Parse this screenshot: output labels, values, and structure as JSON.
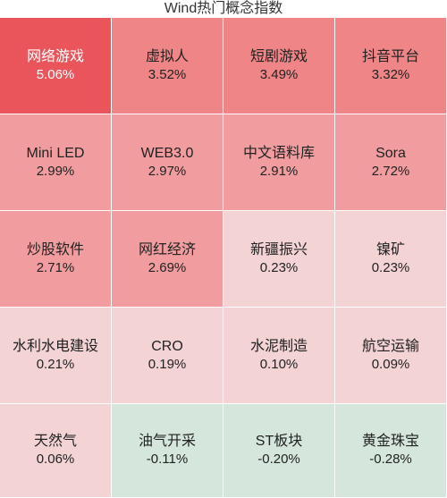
{
  "header": {
    "title": "Wind热门概念指数"
  },
  "tiles": [
    {
      "name": "网络游戏",
      "change": "5.06%",
      "color": "#e9555a",
      "text": "#ffffff"
    },
    {
      "name": "虚拟人",
      "change": "3.52%",
      "color": "#ef8587",
      "text": "#222222"
    },
    {
      "name": "短剧游戏",
      "change": "3.49%",
      "color": "#ef8587",
      "text": "#222222"
    },
    {
      "name": "抖音平台",
      "change": "3.32%",
      "color": "#ef8587",
      "text": "#222222"
    },
    {
      "name": "Mini LED",
      "change": "2.99%",
      "color": "#f19d9f",
      "text": "#222222"
    },
    {
      "name": "WEB3.0",
      "change": "2.97%",
      "color": "#f19d9f",
      "text": "#222222"
    },
    {
      "name": "中文语料库",
      "change": "2.91%",
      "color": "#f19d9f",
      "text": "#222222"
    },
    {
      "name": "Sora",
      "change": "2.72%",
      "color": "#f19d9f",
      "text": "#222222"
    },
    {
      "name": "炒股软件",
      "change": "2.71%",
      "color": "#f19d9f",
      "text": "#222222"
    },
    {
      "name": "网红经济",
      "change": "2.69%",
      "color": "#f19d9f",
      "text": "#222222"
    },
    {
      "name": "新疆振兴",
      "change": "0.23%",
      "color": "#f3d3d4",
      "text": "#222222"
    },
    {
      "name": "镍矿",
      "change": "0.23%",
      "color": "#f3d3d4",
      "text": "#222222"
    },
    {
      "name": "水利水电建设",
      "change": "0.21%",
      "color": "#f3d3d4",
      "text": "#222222"
    },
    {
      "name": "CRO",
      "change": "0.19%",
      "color": "#f3d3d4",
      "text": "#222222"
    },
    {
      "name": "水泥制造",
      "change": "0.10%",
      "color": "#f3d3d4",
      "text": "#222222"
    },
    {
      "name": "航空运输",
      "change": "0.09%",
      "color": "#f3d3d4",
      "text": "#222222"
    },
    {
      "name": "天然气",
      "change": "0.06%",
      "color": "#f3d3d4",
      "text": "#222222"
    },
    {
      "name": "油气开采",
      "change": "-0.11%",
      "color": "#d5e7dc",
      "text": "#222222"
    },
    {
      "name": "ST板块",
      "change": "-0.20%",
      "color": "#d5e7dc",
      "text": "#222222"
    },
    {
      "name": "黄金珠宝",
      "change": "-0.28%",
      "color": "#d5e7dc",
      "text": "#222222"
    }
  ]
}
